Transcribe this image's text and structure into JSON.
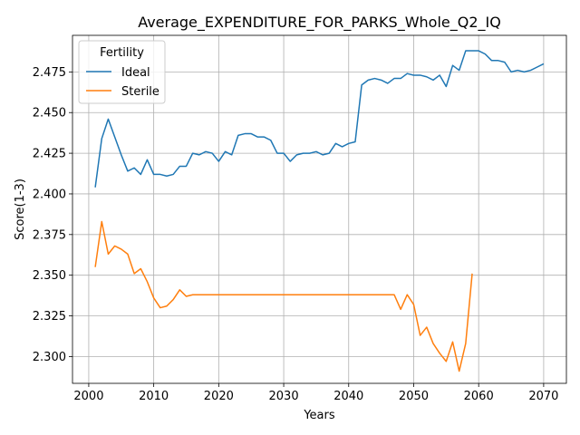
{
  "chart_data": {
    "type": "line",
    "title": "Average_EXPENDITURE_FOR_PARKS_Whole_Q2_IQ",
    "xlabel": "Years",
    "ylabel": "Score(1-3)",
    "xlim": [
      1997.5,
      2073.5
    ],
    "ylim": [
      2.2835,
      2.4975
    ],
    "xticks": [
      2000,
      2010,
      2020,
      2030,
      2040,
      2050,
      2060,
      2070
    ],
    "yticks": [
      2.3,
      2.325,
      2.35,
      2.375,
      2.4,
      2.425,
      2.45,
      2.475
    ],
    "grid": true,
    "legend": {
      "title": "Fertility",
      "placement": "top-left"
    },
    "series": [
      {
        "name": "Ideal",
        "color": "#1f77b4",
        "x": [
          2001,
          2002,
          2003,
          2004,
          2005,
          2006,
          2007,
          2008,
          2009,
          2010,
          2011,
          2012,
          2013,
          2014,
          2015,
          2016,
          2017,
          2018,
          2019,
          2020,
          2021,
          2022,
          2023,
          2024,
          2025,
          2026,
          2027,
          2028,
          2029,
          2030,
          2031,
          2032,
          2033,
          2034,
          2035,
          2036,
          2037,
          2038,
          2039,
          2040,
          2041,
          2042,
          2043,
          2044,
          2045,
          2046,
          2047,
          2048,
          2049,
          2050,
          2051,
          2052,
          2053,
          2054,
          2055,
          2056,
          2057,
          2058,
          2059,
          2060,
          2061,
          2062,
          2063,
          2064,
          2065,
          2066,
          2067,
          2068,
          2069,
          2070
        ],
        "values": [
          2.404,
          2.434,
          2.446,
          2.435,
          2.424,
          2.414,
          2.416,
          2.412,
          2.421,
          2.412,
          2.412,
          2.411,
          2.412,
          2.417,
          2.417,
          2.425,
          2.424,
          2.426,
          2.425,
          2.42,
          2.426,
          2.424,
          2.436,
          2.437,
          2.437,
          2.435,
          2.435,
          2.433,
          2.425,
          2.425,
          2.42,
          2.424,
          2.425,
          2.425,
          2.426,
          2.424,
          2.425,
          2.431,
          2.429,
          2.431,
          2.432,
          2.467,
          2.47,
          2.471,
          2.47,
          2.468,
          2.471,
          2.471,
          2.474,
          2.473,
          2.473,
          2.472,
          2.47,
          2.473,
          2.466,
          2.479,
          2.476,
          2.488,
          2.488,
          2.488,
          2.486,
          2.482,
          2.482,
          2.481,
          2.475,
          2.476,
          2.475,
          2.476,
          2.478,
          2.48
        ]
      },
      {
        "name": "Sterile",
        "color": "#ff7f0e",
        "x": [
          2001,
          2002,
          2003,
          2004,
          2005,
          2006,
          2007,
          2008,
          2009,
          2010,
          2011,
          2012,
          2013,
          2014,
          2015,
          2016,
          2017,
          2018,
          2019,
          2020,
          2021,
          2022,
          2023,
          2024,
          2025,
          2026,
          2027,
          2028,
          2029,
          2030,
          2031,
          2032,
          2033,
          2034,
          2035,
          2036,
          2037,
          2038,
          2039,
          2040,
          2041,
          2042,
          2043,
          2044,
          2045,
          2046,
          2047,
          2048,
          2049,
          2050,
          2051,
          2052,
          2053,
          2054,
          2055,
          2056,
          2057,
          2058,
          2059
        ],
        "values": [
          2.355,
          2.383,
          2.363,
          2.368,
          2.366,
          2.363,
          2.351,
          2.354,
          2.346,
          2.336,
          2.33,
          2.331,
          2.335,
          2.341,
          2.337,
          2.338,
          2.338,
          2.338,
          2.338,
          2.338,
          2.338,
          2.338,
          2.338,
          2.338,
          2.338,
          2.338,
          2.338,
          2.338,
          2.338,
          2.338,
          2.338,
          2.338,
          2.338,
          2.338,
          2.338,
          2.338,
          2.338,
          2.338,
          2.338,
          2.338,
          2.338,
          2.338,
          2.338,
          2.338,
          2.338,
          2.338,
          2.338,
          2.329,
          2.338,
          2.332,
          2.313,
          2.318,
          2.308,
          2.302,
          2.297,
          2.309,
          2.291,
          2.308,
          2.351
        ]
      }
    ]
  }
}
